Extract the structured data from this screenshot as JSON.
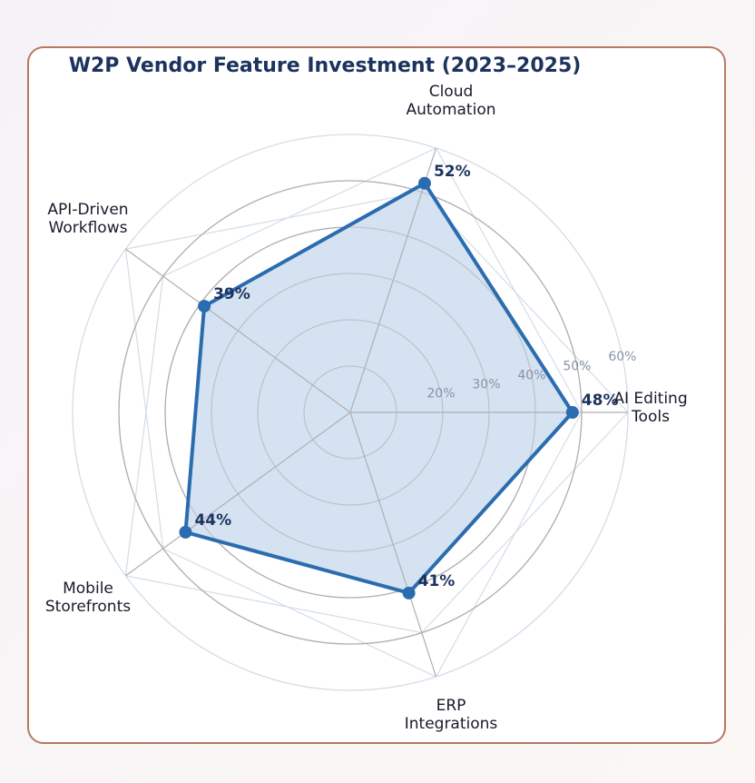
{
  "chart_data": {
    "type": "radar",
    "title": "W2P Vendor Feature Investment (2023–2025)",
    "categories": [
      "AI Editing\nTools",
      "Cloud\nAutomation",
      "API-Driven\nWorkflows",
      "Mobile\nStorefronts",
      "ERP\nIntegrations"
    ],
    "values": [
      48,
      52,
      39,
      44,
      41
    ],
    "data_labels": [
      "48%",
      "52%",
      "39%",
      "44%",
      "41%"
    ],
    "radial_ticks": [
      20,
      30,
      40,
      50,
      60
    ],
    "radial_tick_labels": [
      "20%",
      "30%",
      "40%",
      "50%",
      "60%"
    ],
    "rlim": [
      0,
      60
    ],
    "grid": true,
    "colors": {
      "line": "#2b6cb0",
      "fill": "#cfdff0",
      "label": "#1c335e",
      "grid": "#b0b0b0",
      "outer_grid": "#d3dde8"
    }
  }
}
